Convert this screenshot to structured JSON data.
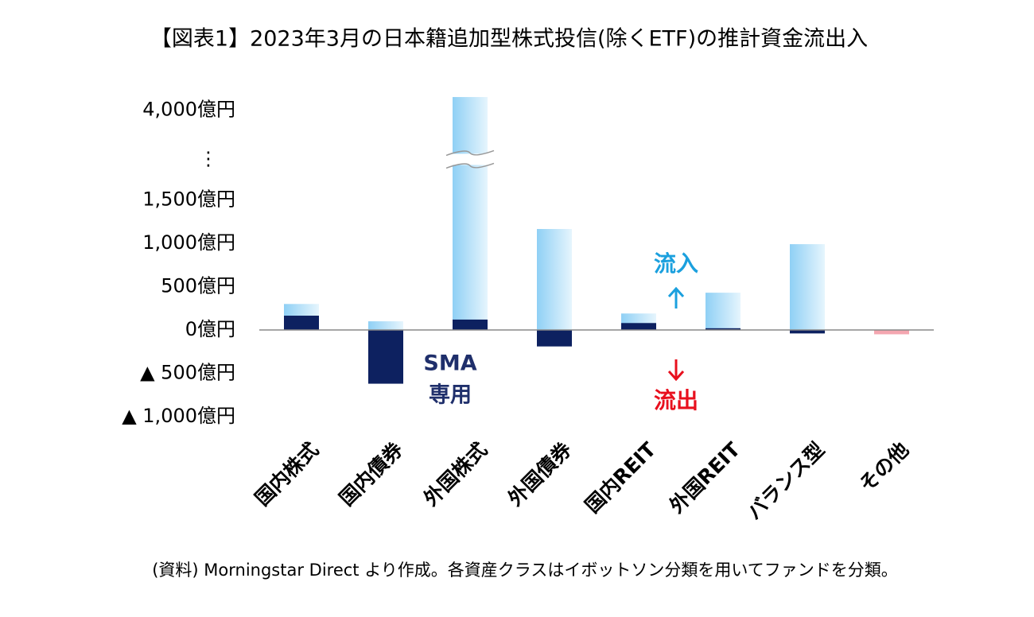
{
  "chart_data": {
    "type": "bar",
    "title": "【図表1】2023年3月の日本籍追加型株式投信(除くETF)の推計資金流出入",
    "categories": [
      "国内株式",
      "国内債券",
      "外国株式",
      "外国債券",
      "国内REIT",
      "外国REIT",
      "バランス型",
      "その他"
    ],
    "series": [
      {
        "color": "#8fd0f5",
        "values": [
          300,
          100,
          4150,
          1165,
          190,
          430,
          990,
          null
        ]
      },
      {
        "color": "#0d2160",
        "values": [
          165,
          -620,
          120,
          -190,
          80,
          20,
          -40,
          null
        ]
      },
      {
        "color": "#f4a6b0",
        "values": [
          null,
          null,
          null,
          null,
          null,
          null,
          null,
          -50
        ]
      }
    ],
    "ylim": [
      -1000,
      4150
    ],
    "yticks": [
      {
        "value": -1000,
        "label": "▲ 1,000億円"
      },
      {
        "value": -500,
        "label": "▲ 500億円"
      },
      {
        "value": 0,
        "label": "0億円"
      },
      {
        "value": 500,
        "label": "500億円"
      },
      {
        "value": 1000,
        "label": "1,000億円"
      },
      {
        "value": 1500,
        "label": "1,500億円"
      },
      {
        "value": 4000,
        "label": "4,000億円"
      }
    ],
    "axis_break": [
      1900,
      3500
    ],
    "axis_break_label": "⋮",
    "annotations": {
      "inflow": "流入",
      "outflow": "流出",
      "sma_line1": "SMA",
      "sma_line2": "専用"
    },
    "source": "(資料) Morningstar Direct より作成。各資産クラスはイボットソン分類を用いてファンドを分類。"
  }
}
